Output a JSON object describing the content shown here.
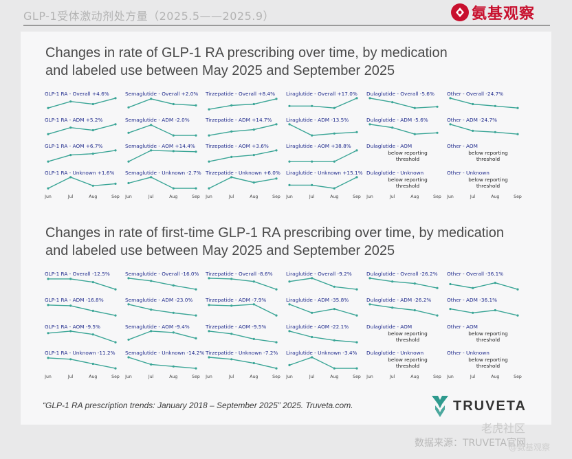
{
  "header": {
    "title": "GLP-1受体激动剂处方量（2025.5——2025.9）",
    "logo_text": "氨基观察"
  },
  "sections": [
    {
      "title_line1": "Changes in rate of GLP-1 RA prescribing over time, by medication",
      "title_line2": "and labeled use between May 2025 and September 2025"
    },
    {
      "title_line1": "Changes in rate of first-time GLP-1 RA prescribing over time, by medication",
      "title_line2": "and labeled use between May 2025 and September 2025"
    }
  ],
  "chart_data": [
    {
      "type": "line",
      "title": "Changes in rate of GLP-1 RA prescribing over time, by medication and labeled use between May 2025 and September 2025",
      "x": [
        "Jun",
        "Jul",
        "Aug",
        "Sep"
      ],
      "x_labels": [
        "Jun",
        "Jul",
        "Aug",
        "Sep"
      ],
      "rows": [
        [
          {
            "label": "GLP-1 RA - Overall +4.6%",
            "values": [
              0.2,
              0.7,
              0.5,
              0.95
            ]
          },
          {
            "label": "Semaglutide - Overall +2.0%",
            "values": [
              0.25,
              0.9,
              0.5,
              0.4
            ]
          },
          {
            "label": "Tirzepatide - Overall +8.4%",
            "values": [
              0.1,
              0.4,
              0.5,
              0.9
            ]
          },
          {
            "label": "Liraglutide - Overall +17.0%",
            "values": [
              0.35,
              0.35,
              0.2,
              0.95
            ]
          },
          {
            "label": "Dulaglutide - Overall -5.6%",
            "values": [
              0.95,
              0.65,
              0.2,
              0.3
            ]
          },
          {
            "label": "Other - Overall -24.7%",
            "values": [
              0.95,
              0.5,
              0.35,
              0.2
            ]
          }
        ],
        [
          {
            "label": "GLP-1 RA - ADM +5.2%",
            "values": [
              0.2,
              0.7,
              0.5,
              0.95
            ]
          },
          {
            "label": "Semaglutide - ADM -2.0%",
            "values": [
              0.3,
              0.9,
              0.1,
              0.1
            ]
          },
          {
            "label": "Tirzepatide - ADM +14.7%",
            "values": [
              0.1,
              0.4,
              0.55,
              0.95
            ]
          },
          {
            "label": "Liraglutide - ADM -13.5%",
            "values": [
              0.95,
              0.1,
              0.25,
              0.35
            ]
          },
          {
            "label": "Dulaglutide - ADM -5.6%",
            "values": [
              0.95,
              0.7,
              0.2,
              0.3
            ]
          },
          {
            "label": "Other - ADM -24.7%",
            "values": [
              0.95,
              0.45,
              0.35,
              0.2
            ]
          }
        ],
        [
          {
            "label": "GLP-1 RA - AOM +6.7%",
            "values": [
              0.1,
              0.6,
              0.7,
              0.95
            ]
          },
          {
            "label": "Semaglutide - AOM +14.4%",
            "values": [
              0.1,
              0.95,
              0.9,
              0.85
            ]
          },
          {
            "label": "Tirzepatide - AOM +3.6%",
            "values": [
              0.1,
              0.45,
              0.6,
              0.95
            ]
          },
          {
            "label": "Liraglutide - AOM +38.8%",
            "values": [
              0.1,
              0.1,
              0.1,
              0.95
            ]
          },
          {
            "label": "Dulaglutide - AOM",
            "note": "below reporting threshold"
          },
          {
            "label": "Other - AOM",
            "note": "below reporting threshold"
          }
        ],
        [
          {
            "label": "GLP-1 RA - Unknown +1.6%",
            "values": [
              0.1,
              0.95,
              0.3,
              0.45
            ]
          },
          {
            "label": "Semaglutide - Unknown -2.7%",
            "values": [
              0.5,
              0.95,
              0.1,
              0.1
            ]
          },
          {
            "label": "Tirzepatide - Unknown +6.0%",
            "values": [
              0.1,
              0.95,
              0.55,
              0.85
            ]
          },
          {
            "label": "Liraglutide - Unknown +15.1%",
            "values": [
              0.35,
              0.35,
              0.1,
              0.95
            ]
          },
          {
            "label": "Dulaglutide - Unknown",
            "note": "below reporting threshold"
          },
          {
            "label": "Other - Unknown",
            "note": "below reporting threshold"
          }
        ]
      ]
    },
    {
      "type": "line",
      "title": "Changes in rate of first-time GLP-1 RA prescribing over time, by medication and labeled use between May 2025 and September 2025",
      "x": [
        "Jun",
        "Jul",
        "Aug",
        "Sep"
      ],
      "x_labels": [
        "Jun",
        "Jul",
        "Aug",
        "Sep"
      ],
      "rows": [
        [
          {
            "label": "GLP-1 RA - Overall -12.5%",
            "values": [
              0.9,
              0.9,
              0.65,
              0.1
            ]
          },
          {
            "label": "Semaglutide - Overall -16.0%",
            "values": [
              0.95,
              0.75,
              0.4,
              0.1
            ]
          },
          {
            "label": "Tirzepatide - Overall -8.6%",
            "values": [
              0.95,
              0.9,
              0.7,
              0.1
            ]
          },
          {
            "label": "Liraglutide - Overall -9.2%",
            "values": [
              0.7,
              0.95,
              0.3,
              0.1
            ]
          },
          {
            "label": "Dulaglutide - Overall -26.2%",
            "values": [
              0.95,
              0.7,
              0.55,
              0.2
            ]
          },
          {
            "label": "Other - Overall -36.1%",
            "values": [
              0.5,
              0.2,
              0.6,
              0.1
            ]
          }
        ],
        [
          {
            "label": "GLP-1 RA - ADM -16.8%",
            "values": [
              0.9,
              0.85,
              0.45,
              0.1
            ]
          },
          {
            "label": "Semaglutide - ADM -23.0%",
            "values": [
              0.95,
              0.55,
              0.3,
              0.1
            ]
          },
          {
            "label": "Tirzepatide - ADM -7.9%",
            "values": [
              0.9,
              0.85,
              0.95,
              0.1
            ]
          },
          {
            "label": "Liraglutide - ADM -35.8%",
            "values": [
              0.95,
              0.3,
              0.6,
              0.1
            ]
          },
          {
            "label": "Dulaglutide - ADM -26.2%",
            "values": [
              0.95,
              0.7,
              0.5,
              0.1
            ]
          },
          {
            "label": "Other - ADM -36.1%",
            "values": [
              0.6,
              0.3,
              0.5,
              0.1
            ]
          }
        ],
        [
          {
            "label": "GLP-1 RA - AOM -9.5%",
            "values": [
              0.8,
              0.95,
              0.7,
              0.1
            ]
          },
          {
            "label": "Semaglutide - AOM -9.4%",
            "values": [
              0.3,
              0.95,
              0.85,
              0.4
            ]
          },
          {
            "label": "Tirzepatide - AOM -9.5%",
            "values": [
              0.95,
              0.75,
              0.35,
              0.1
            ]
          },
          {
            "label": "Liraglutide - AOM -22.1%",
            "values": [
              0.95,
              0.5,
              0.25,
              0.1
            ]
          },
          {
            "label": "Dulaglutide - AOM",
            "note": "below reporting threshold"
          },
          {
            "label": "Other - AOM",
            "note": "below reporting threshold"
          }
        ],
        [
          {
            "label": "GLP-1 RA - Unknown -11.2%",
            "values": [
              0.9,
              0.8,
              0.45,
              0.1
            ]
          },
          {
            "label": "Semaglutide - Unknown -14.2%",
            "values": [
              0.95,
              0.4,
              0.25,
              0.1
            ]
          },
          {
            "label": "Tirzepatide - Unknown -7.2%",
            "values": [
              0.95,
              0.8,
              0.5,
              0.1
            ]
          },
          {
            "label": "Liraglutide - Unknown -3.4%",
            "values": [
              0.35,
              0.95,
              0.1,
              0.1
            ]
          },
          {
            "label": "Dulaglutide - Unknown",
            "note": "below reporting threshold"
          },
          {
            "label": "Other - Unknown",
            "note": "below reporting threshold"
          }
        ]
      ]
    }
  ],
  "footer": {
    "citation": "“GLP-1 RA prescription trends: January 2018 – September 2025” 2025. Truveta.com.",
    "brand": "TRUVETA",
    "watermark1": "老虎社区",
    "watermark2": "数据来源：TRUVETA官网",
    "watermark3": "@氨基观察"
  },
  "colors": {
    "line": "#3aa596",
    "label": "#1f2a8c",
    "logo_red": "#c8102e",
    "truveta_green": "#2e9a8e"
  }
}
